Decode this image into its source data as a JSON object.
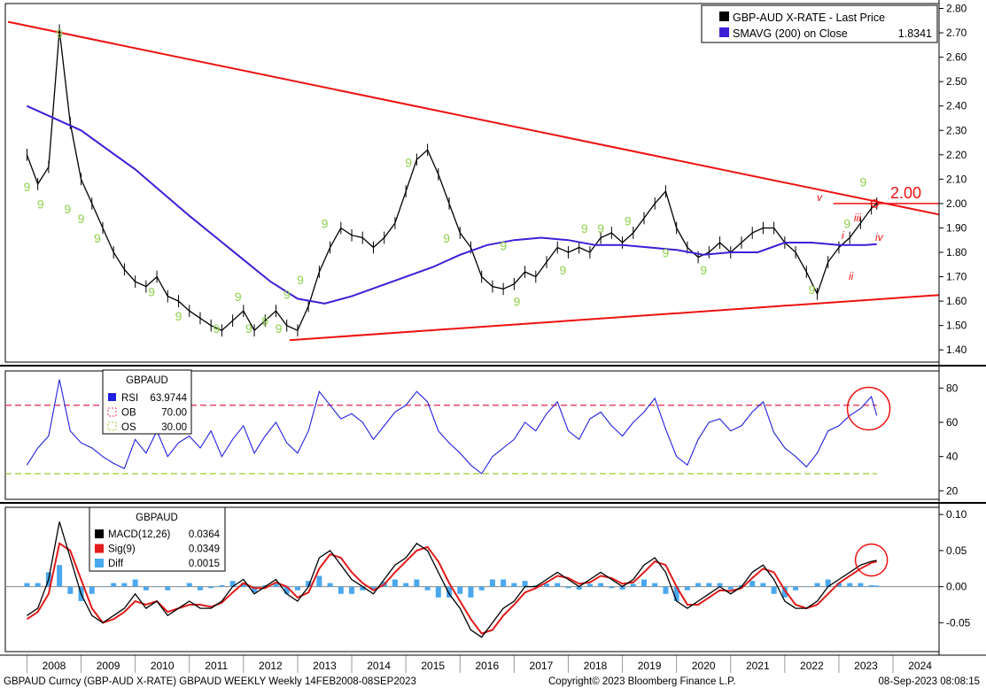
{
  "footer": {
    "left": "GBPAUD Curncy (GBP-AUD X-RATE) GBPAUD WEEKLY   Weekly 14FEB2008-08SEP2023",
    "center": "Copyright© 2023 Bloomberg Finance L.P.",
    "right": "08-Sep-2023 08:08:15"
  },
  "colors": {
    "price": "#000000",
    "sma": "#3b1fd6",
    "trendline": "#ee1111",
    "rsi": "#2020dd",
    "ob_line": "#e83a5a",
    "os_line": "#9ccc2c",
    "macd": "#000000",
    "signal": "#e21a1a",
    "diff": "#4aa8ee",
    "td_count": "#8ed14a"
  },
  "chart_data": [
    {
      "type": "line",
      "panel": "price",
      "x_tick_labels": [
        "2008",
        "2009",
        "2010",
        "2011",
        "2012",
        "2013",
        "2014",
        "2015",
        "2016",
        "2017",
        "2018",
        "2019",
        "2020",
        "2021",
        "2022",
        "2023",
        "2024"
      ],
      "ylim": [
        1.35,
        2.82
      ],
      "y_ticks": [
        "1.40",
        "1.50",
        "1.60",
        "1.70",
        "1.80",
        "1.90",
        "2.00",
        "2.10",
        "2.20",
        "2.30",
        "2.40",
        "2.50",
        "2.60",
        "2.70",
        "2.80"
      ],
      "grid": false,
      "legend_position": "top-right",
      "legend": [
        {
          "label": "GBP-AUD X-RATE - Last Price",
          "value": ""
        },
        {
          "label": "SMAVG (200)  on Close",
          "value": "1.8341"
        }
      ],
      "series": [
        {
          "name": "GBP-AUD X-RATE - Last Price",
          "x": [
            2008.0,
            2008.2,
            2008.4,
            2008.6,
            2008.8,
            2009.0,
            2009.2,
            2009.4,
            2009.6,
            2009.8,
            2010.0,
            2010.2,
            2010.4,
            2010.6,
            2010.8,
            2011.0,
            2011.2,
            2011.4,
            2011.6,
            2011.8,
            2012.0,
            2012.2,
            2012.4,
            2012.6,
            2012.8,
            2013.0,
            2013.2,
            2013.4,
            2013.6,
            2013.8,
            2014.0,
            2014.2,
            2014.4,
            2014.6,
            2014.8,
            2015.0,
            2015.2,
            2015.4,
            2015.6,
            2015.8,
            2016.0,
            2016.2,
            2016.4,
            2016.6,
            2016.8,
            2017.0,
            2017.2,
            2017.4,
            2017.6,
            2017.8,
            2018.0,
            2018.2,
            2018.4,
            2018.6,
            2018.8,
            2019.0,
            2019.2,
            2019.4,
            2019.6,
            2019.8,
            2020.0,
            2020.2,
            2020.4,
            2020.6,
            2020.8,
            2021.0,
            2021.2,
            2021.4,
            2021.6,
            2021.8,
            2022.0,
            2022.2,
            2022.4,
            2022.6,
            2022.8,
            2023.0,
            2023.2,
            2023.4,
            2023.6,
            2023.7
          ],
          "values": [
            2.2,
            2.08,
            2.15,
            2.71,
            2.33,
            2.1,
            2.0,
            1.9,
            1.8,
            1.73,
            1.68,
            1.66,
            1.7,
            1.62,
            1.6,
            1.56,
            1.53,
            1.5,
            1.48,
            1.52,
            1.56,
            1.48,
            1.52,
            1.56,
            1.5,
            1.48,
            1.58,
            1.72,
            1.82,
            1.9,
            1.87,
            1.86,
            1.82,
            1.86,
            1.92,
            2.05,
            2.18,
            2.22,
            2.12,
            2.0,
            1.88,
            1.82,
            1.7,
            1.66,
            1.65,
            1.67,
            1.72,
            1.7,
            1.76,
            1.82,
            1.8,
            1.82,
            1.8,
            1.86,
            1.88,
            1.84,
            1.88,
            1.94,
            2.0,
            2.05,
            1.9,
            1.82,
            1.78,
            1.8,
            1.84,
            1.8,
            1.84,
            1.88,
            1.9,
            1.9,
            1.84,
            1.8,
            1.72,
            1.63,
            1.76,
            1.82,
            1.86,
            1.92,
            1.98,
            2.0
          ]
        },
        {
          "name": "SMAVG (200)  on Close",
          "x": [
            2008.0,
            2009.0,
            2010.0,
            2011.0,
            2012.0,
            2012.5,
            2013.0,
            2013.5,
            2014.0,
            2014.5,
            2015.0,
            2015.5,
            2016.0,
            2016.5,
            2017.0,
            2017.5,
            2018.0,
            2018.5,
            2019.0,
            2019.5,
            2020.0,
            2020.5,
            2021.0,
            2021.5,
            2022.0,
            2022.5,
            2023.0,
            2023.5,
            2023.7
          ],
          "values": [
            2.4,
            2.3,
            2.14,
            1.95,
            1.77,
            1.68,
            1.61,
            1.59,
            1.62,
            1.66,
            1.7,
            1.74,
            1.79,
            1.83,
            1.85,
            1.86,
            1.85,
            1.83,
            1.83,
            1.82,
            1.81,
            1.79,
            1.8,
            1.8,
            1.84,
            1.84,
            1.83,
            1.83,
            1.834
          ]
        }
      ],
      "annotations": [
        "2.00",
        "v",
        "i",
        "ii",
        "iii",
        "iv"
      ],
      "td_sequential_label": "9"
    },
    {
      "type": "line",
      "panel": "rsi",
      "ylim": [
        15,
        90
      ],
      "y_ticks": [
        "20",
        "40",
        "60",
        "80"
      ],
      "legend_title": "GBPAUD",
      "legend": [
        {
          "label": "RSI",
          "value": "63.9744"
        },
        {
          "label": "OB",
          "value": "70.00"
        },
        {
          "label": "OS",
          "value": "30.00"
        }
      ],
      "series": [
        {
          "name": "RSI",
          "x": [
            2008.0,
            2008.2,
            2008.4,
            2008.6,
            2008.8,
            2009.0,
            2009.2,
            2009.4,
            2009.6,
            2009.8,
            2010.0,
            2010.2,
            2010.4,
            2010.6,
            2010.8,
            2011.0,
            2011.2,
            2011.4,
            2011.6,
            2011.8,
            2012.0,
            2012.2,
            2012.4,
            2012.6,
            2012.8,
            2013.0,
            2013.2,
            2013.4,
            2013.6,
            2013.8,
            2014.0,
            2014.2,
            2014.4,
            2014.6,
            2014.8,
            2015.0,
            2015.2,
            2015.4,
            2015.6,
            2015.8,
            2016.0,
            2016.2,
            2016.4,
            2016.6,
            2016.8,
            2017.0,
            2017.2,
            2017.4,
            2017.6,
            2017.8,
            2018.0,
            2018.2,
            2018.4,
            2018.6,
            2018.8,
            2019.0,
            2019.2,
            2019.4,
            2019.6,
            2019.8,
            2020.0,
            2020.2,
            2020.4,
            2020.6,
            2020.8,
            2021.0,
            2021.2,
            2021.4,
            2021.6,
            2021.8,
            2022.0,
            2022.2,
            2022.4,
            2022.6,
            2022.8,
            2023.0,
            2023.2,
            2023.4,
            2023.6,
            2023.7
          ],
          "values": [
            35,
            45,
            52,
            85,
            55,
            48,
            45,
            40,
            36,
            33,
            50,
            42,
            55,
            40,
            48,
            52,
            45,
            55,
            40,
            50,
            58,
            42,
            52,
            60,
            48,
            42,
            55,
            78,
            70,
            62,
            65,
            60,
            50,
            58,
            66,
            70,
            78,
            72,
            55,
            48,
            42,
            35,
            30,
            40,
            45,
            50,
            60,
            55,
            65,
            72,
            55,
            50,
            62,
            66,
            58,
            52,
            60,
            66,
            74,
            56,
            40,
            35,
            50,
            60,
            62,
            55,
            58,
            66,
            72,
            54,
            45,
            40,
            34,
            42,
            55,
            58,
            64,
            68,
            75,
            64
          ]
        },
        {
          "name": "OB",
          "constant": 70
        },
        {
          "name": "OS",
          "constant": 30
        }
      ]
    },
    {
      "type": "line",
      "panel": "macd",
      "ylim": [
        -0.09,
        0.11
      ],
      "y_ticks": [
        "-0.05",
        "0.00",
        "0.05",
        "0.10"
      ],
      "legend_title": "GBPAUD",
      "legend": [
        {
          "label": "MACD(12,26)",
          "value": "0.0364"
        },
        {
          "label": "Sig(9)",
          "value": "0.0349"
        },
        {
          "label": "Diff",
          "value": "0.0015"
        }
      ],
      "series": [
        {
          "name": "MACD(12,26)",
          "x": [
            2008.0,
            2008.2,
            2008.4,
            2008.6,
            2008.8,
            2009.0,
            2009.2,
            2009.4,
            2009.6,
            2009.8,
            2010.0,
            2010.2,
            2010.4,
            2010.6,
            2010.8,
            2011.0,
            2011.2,
            2011.4,
            2011.6,
            2011.8,
            2012.0,
            2012.2,
            2012.4,
            2012.6,
            2012.8,
            2013.0,
            2013.2,
            2013.4,
            2013.6,
            2013.8,
            2014.0,
            2014.2,
            2014.4,
            2014.6,
            2014.8,
            2015.0,
            2015.2,
            2015.4,
            2015.6,
            2015.8,
            2016.0,
            2016.2,
            2016.4,
            2016.6,
            2016.8,
            2017.0,
            2017.2,
            2017.4,
            2017.6,
            2017.8,
            2018.0,
            2018.2,
            2018.4,
            2018.6,
            2018.8,
            2019.0,
            2019.2,
            2019.4,
            2019.6,
            2019.8,
            2020.0,
            2020.2,
            2020.4,
            2020.6,
            2020.8,
            2021.0,
            2021.2,
            2021.4,
            2021.6,
            2021.8,
            2022.0,
            2022.2,
            2022.4,
            2022.6,
            2022.8,
            2023.0,
            2023.2,
            2023.4,
            2023.6,
            2023.7
          ],
          "values": [
            -0.04,
            -0.03,
            0.01,
            0.09,
            0.04,
            -0.01,
            -0.04,
            -0.05,
            -0.04,
            -0.03,
            -0.01,
            -0.03,
            -0.02,
            -0.04,
            -0.03,
            -0.02,
            -0.03,
            -0.03,
            -0.02,
            0.0,
            0.01,
            -0.01,
            0.0,
            0.01,
            -0.01,
            -0.02,
            0.0,
            0.04,
            0.05,
            0.03,
            0.01,
            0.0,
            -0.01,
            0.01,
            0.03,
            0.04,
            0.06,
            0.05,
            0.02,
            -0.01,
            -0.03,
            -0.06,
            -0.07,
            -0.05,
            -0.03,
            -0.02,
            0.0,
            0.0,
            0.01,
            0.02,
            0.01,
            0.0,
            0.01,
            0.02,
            0.01,
            0.0,
            0.01,
            0.03,
            0.04,
            0.02,
            -0.02,
            -0.03,
            -0.02,
            -0.01,
            0.0,
            -0.01,
            0.0,
            0.02,
            0.03,
            0.01,
            -0.02,
            -0.03,
            -0.03,
            -0.02,
            0.0,
            0.01,
            0.02,
            0.03,
            0.035,
            0.0364
          ]
        },
        {
          "name": "Sig(9)",
          "x": [
            2008.0,
            2008.2,
            2008.4,
            2008.6,
            2008.8,
            2009.0,
            2009.2,
            2009.4,
            2009.6,
            2009.8,
            2010.0,
            2010.2,
            2010.4,
            2010.6,
            2010.8,
            2011.0,
            2011.2,
            2011.4,
            2011.6,
            2011.8,
            2012.0,
            2012.2,
            2012.4,
            2012.6,
            2012.8,
            2013.0,
            2013.2,
            2013.4,
            2013.6,
            2013.8,
            2014.0,
            2014.2,
            2014.4,
            2014.6,
            2014.8,
            2015.0,
            2015.2,
            2015.4,
            2015.6,
            2015.8,
            2016.0,
            2016.2,
            2016.4,
            2016.6,
            2016.8,
            2017.0,
            2017.2,
            2017.4,
            2017.6,
            2017.8,
            2018.0,
            2018.2,
            2018.4,
            2018.6,
            2018.8,
            2019.0,
            2019.2,
            2019.4,
            2019.6,
            2019.8,
            2020.0,
            2020.2,
            2020.4,
            2020.6,
            2020.8,
            2021.0,
            2021.2,
            2021.4,
            2021.6,
            2021.8,
            2022.0,
            2022.2,
            2022.4,
            2022.6,
            2022.8,
            2023.0,
            2023.2,
            2023.4,
            2023.6,
            2023.7
          ],
          "values": [
            -0.045,
            -0.035,
            -0.01,
            0.06,
            0.05,
            0.01,
            -0.03,
            -0.05,
            -0.045,
            -0.035,
            -0.02,
            -0.025,
            -0.02,
            -0.035,
            -0.03,
            -0.025,
            -0.025,
            -0.028,
            -0.022,
            -0.008,
            0.005,
            -0.002,
            -0.002,
            0.006,
            0.0,
            -0.015,
            -0.008,
            0.025,
            0.045,
            0.04,
            0.02,
            0.005,
            -0.005,
            0.003,
            0.02,
            0.035,
            0.05,
            0.055,
            0.035,
            0.005,
            -0.02,
            -0.045,
            -0.065,
            -0.06,
            -0.04,
            -0.025,
            -0.008,
            -0.002,
            0.006,
            0.015,
            0.012,
            0.004,
            0.006,
            0.015,
            0.012,
            0.004,
            0.006,
            0.02,
            0.035,
            0.03,
            0.0,
            -0.025,
            -0.025,
            -0.015,
            -0.005,
            -0.006,
            -0.002,
            0.012,
            0.025,
            0.02,
            -0.005,
            -0.025,
            -0.03,
            -0.025,
            -0.01,
            0.005,
            0.015,
            0.025,
            0.033,
            0.0349
          ]
        },
        {
          "name": "Diff",
          "x": [
            2008.0,
            2008.2,
            2008.4,
            2008.6,
            2008.8,
            2009.0,
            2009.2,
            2009.4,
            2009.6,
            2009.8,
            2010.0,
            2010.2,
            2010.4,
            2010.6,
            2010.8,
            2011.0,
            2011.2,
            2011.4,
            2011.6,
            2011.8,
            2012.0,
            2012.2,
            2012.4,
            2012.6,
            2012.8,
            2013.0,
            2013.2,
            2013.4,
            2013.6,
            2013.8,
            2014.0,
            2014.2,
            2014.4,
            2014.6,
            2014.8,
            2015.0,
            2015.2,
            2015.4,
            2015.6,
            2015.8,
            2016.0,
            2016.2,
            2016.4,
            2016.6,
            2016.8,
            2017.0,
            2017.2,
            2017.4,
            2017.6,
            2017.8,
            2018.0,
            2018.2,
            2018.4,
            2018.6,
            2018.8,
            2019.0,
            2019.2,
            2019.4,
            2019.6,
            2019.8,
            2020.0,
            2020.2,
            2020.4,
            2020.6,
            2020.8,
            2021.0,
            2021.2,
            2021.4,
            2021.6,
            2021.8,
            2022.0,
            2022.2,
            2022.4,
            2022.6,
            2022.8,
            2023.0,
            2023.2,
            2023.4,
            2023.6,
            2023.7
          ],
          "values": [
            0.005,
            0.005,
            0.02,
            0.03,
            -0.01,
            -0.02,
            -0.01,
            0.0,
            0.005,
            0.005,
            0.01,
            -0.005,
            0.0,
            -0.005,
            0.0,
            0.005,
            -0.005,
            -0.002,
            0.002,
            0.008,
            0.005,
            -0.008,
            0.002,
            0.004,
            -0.01,
            -0.005,
            0.008,
            0.015,
            0.005,
            -0.01,
            -0.01,
            -0.005,
            -0.005,
            0.007,
            0.01,
            0.005,
            0.01,
            -0.005,
            -0.015,
            -0.015,
            -0.01,
            -0.015,
            -0.005,
            0.01,
            0.01,
            0.005,
            0.008,
            0.002,
            0.004,
            0.005,
            -0.002,
            -0.004,
            0.004,
            0.005,
            -0.002,
            -0.004,
            0.004,
            0.01,
            0.005,
            -0.01,
            -0.02,
            -0.005,
            0.005,
            0.005,
            0.005,
            -0.004,
            0.002,
            0.008,
            0.005,
            -0.01,
            -0.015,
            -0.005,
            0.0,
            0.005,
            0.01,
            0.005,
            0.005,
            0.005,
            0.002,
            0.0015
          ]
        }
      ]
    }
  ]
}
